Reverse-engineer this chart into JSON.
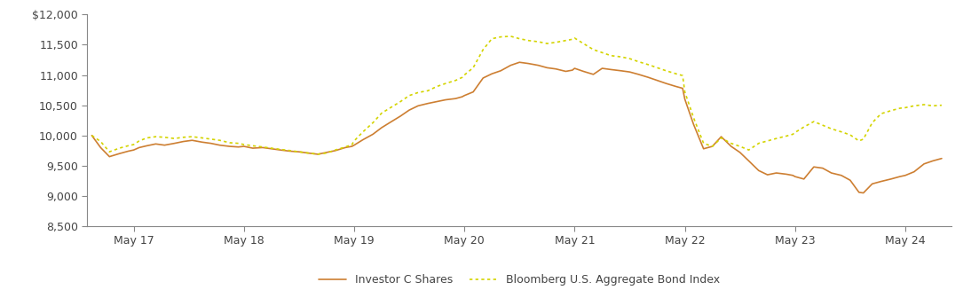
{
  "title": "",
  "xlabel": "",
  "ylabel": "",
  "ylim": [
    8500,
    12000
  ],
  "yticks": [
    8500,
    9000,
    9500,
    10000,
    10500,
    11000,
    11500,
    12000
  ],
  "xtick_labels": [
    "May 17",
    "May 18",
    "May 19",
    "May 20",
    "May 21",
    "May 22",
    "May 23",
    "May 24"
  ],
  "xtick_positions": [
    2017,
    2018,
    2019,
    2020,
    2021,
    2022,
    2023,
    2024
  ],
  "investor_color": "#CD7F32",
  "bloomberg_color": "#D4D400",
  "background_color": "#ffffff",
  "legend_labels": [
    "Investor C Shares",
    "Bloomberg U.S. Aggregate Bond Index"
  ],
  "investor_data": [
    [
      2016.62,
      10000
    ],
    [
      2016.7,
      9800
    ],
    [
      2016.78,
      9650
    ],
    [
      2016.87,
      9700
    ],
    [
      2016.95,
      9740
    ],
    [
      2017.0,
      9760
    ],
    [
      2017.05,
      9800
    ],
    [
      2017.12,
      9830
    ],
    [
      2017.2,
      9860
    ],
    [
      2017.28,
      9840
    ],
    [
      2017.37,
      9870
    ],
    [
      2017.45,
      9900
    ],
    [
      2017.53,
      9920
    ],
    [
      2017.62,
      9890
    ],
    [
      2017.7,
      9870
    ],
    [
      2017.78,
      9840
    ],
    [
      2017.87,
      9820
    ],
    [
      2017.95,
      9810
    ],
    [
      2018.0,
      9820
    ],
    [
      2018.08,
      9790
    ],
    [
      2018.17,
      9800
    ],
    [
      2018.25,
      9780
    ],
    [
      2018.33,
      9760
    ],
    [
      2018.42,
      9740
    ],
    [
      2018.5,
      9730
    ],
    [
      2018.58,
      9710
    ],
    [
      2018.67,
      9690
    ],
    [
      2018.75,
      9720
    ],
    [
      2018.83,
      9750
    ],
    [
      2018.92,
      9800
    ],
    [
      2018.98,
      9820
    ],
    [
      2019.0,
      9840
    ],
    [
      2019.08,
      9930
    ],
    [
      2019.17,
      10020
    ],
    [
      2019.25,
      10130
    ],
    [
      2019.33,
      10220
    ],
    [
      2019.42,
      10320
    ],
    [
      2019.5,
      10420
    ],
    [
      2019.58,
      10490
    ],
    [
      2019.67,
      10530
    ],
    [
      2019.75,
      10560
    ],
    [
      2019.83,
      10590
    ],
    [
      2019.92,
      10610
    ],
    [
      2019.98,
      10640
    ],
    [
      2020.0,
      10660
    ],
    [
      2020.08,
      10720
    ],
    [
      2020.17,
      10950
    ],
    [
      2020.25,
      11020
    ],
    [
      2020.33,
      11070
    ],
    [
      2020.42,
      11160
    ],
    [
      2020.5,
      11210
    ],
    [
      2020.58,
      11190
    ],
    [
      2020.67,
      11160
    ],
    [
      2020.75,
      11120
    ],
    [
      2020.83,
      11100
    ],
    [
      2020.92,
      11060
    ],
    [
      2020.98,
      11080
    ],
    [
      2021.0,
      11110
    ],
    [
      2021.08,
      11060
    ],
    [
      2021.17,
      11010
    ],
    [
      2021.25,
      11110
    ],
    [
      2021.33,
      11090
    ],
    [
      2021.42,
      11070
    ],
    [
      2021.5,
      11050
    ],
    [
      2021.58,
      11010
    ],
    [
      2021.67,
      10960
    ],
    [
      2021.75,
      10910
    ],
    [
      2021.83,
      10860
    ],
    [
      2021.92,
      10810
    ],
    [
      2021.98,
      10780
    ],
    [
      2022.0,
      10600
    ],
    [
      2022.08,
      10180
    ],
    [
      2022.17,
      9780
    ],
    [
      2022.25,
      9820
    ],
    [
      2022.33,
      9980
    ],
    [
      2022.42,
      9820
    ],
    [
      2022.5,
      9720
    ],
    [
      2022.58,
      9580
    ],
    [
      2022.67,
      9420
    ],
    [
      2022.75,
      9350
    ],
    [
      2022.83,
      9380
    ],
    [
      2022.92,
      9360
    ],
    [
      2022.98,
      9340
    ],
    [
      2023.0,
      9320
    ],
    [
      2023.08,
      9280
    ],
    [
      2023.17,
      9480
    ],
    [
      2023.25,
      9460
    ],
    [
      2023.33,
      9380
    ],
    [
      2023.42,
      9340
    ],
    [
      2023.5,
      9260
    ],
    [
      2023.58,
      9060
    ],
    [
      2023.62,
      9050
    ],
    [
      2023.7,
      9200
    ],
    [
      2023.78,
      9240
    ],
    [
      2023.87,
      9280
    ],
    [
      2023.95,
      9320
    ],
    [
      2024.0,
      9340
    ],
    [
      2024.08,
      9400
    ],
    [
      2024.17,
      9530
    ],
    [
      2024.25,
      9580
    ],
    [
      2024.33,
      9620
    ]
  ],
  "bloomberg_data": [
    [
      2016.62,
      10000
    ],
    [
      2016.7,
      9900
    ],
    [
      2016.78,
      9730
    ],
    [
      2016.87,
      9790
    ],
    [
      2016.95,
      9830
    ],
    [
      2017.0,
      9850
    ],
    [
      2017.05,
      9910
    ],
    [
      2017.12,
      9960
    ],
    [
      2017.2,
      9980
    ],
    [
      2017.28,
      9970
    ],
    [
      2017.37,
      9950
    ],
    [
      2017.45,
      9970
    ],
    [
      2017.53,
      9980
    ],
    [
      2017.62,
      9960
    ],
    [
      2017.7,
      9940
    ],
    [
      2017.78,
      9920
    ],
    [
      2017.87,
      9880
    ],
    [
      2017.95,
      9870
    ],
    [
      2018.0,
      9850
    ],
    [
      2018.08,
      9830
    ],
    [
      2018.17,
      9810
    ],
    [
      2018.25,
      9790
    ],
    [
      2018.33,
      9770
    ],
    [
      2018.42,
      9750
    ],
    [
      2018.5,
      9730
    ],
    [
      2018.58,
      9710
    ],
    [
      2018.67,
      9690
    ],
    [
      2018.75,
      9710
    ],
    [
      2018.83,
      9760
    ],
    [
      2018.92,
      9810
    ],
    [
      2018.98,
      9850
    ],
    [
      2019.0,
      9910
    ],
    [
      2019.08,
      10060
    ],
    [
      2019.17,
      10210
    ],
    [
      2019.25,
      10370
    ],
    [
      2019.33,
      10460
    ],
    [
      2019.42,
      10560
    ],
    [
      2019.5,
      10660
    ],
    [
      2019.58,
      10710
    ],
    [
      2019.67,
      10740
    ],
    [
      2019.75,
      10810
    ],
    [
      2019.83,
      10860
    ],
    [
      2019.92,
      10910
    ],
    [
      2019.98,
      10960
    ],
    [
      2020.0,
      11000
    ],
    [
      2020.08,
      11120
    ],
    [
      2020.17,
      11420
    ],
    [
      2020.25,
      11600
    ],
    [
      2020.33,
      11630
    ],
    [
      2020.42,
      11640
    ],
    [
      2020.5,
      11600
    ],
    [
      2020.58,
      11570
    ],
    [
      2020.67,
      11550
    ],
    [
      2020.75,
      11520
    ],
    [
      2020.83,
      11540
    ],
    [
      2020.92,
      11570
    ],
    [
      2020.98,
      11590
    ],
    [
      2021.0,
      11610
    ],
    [
      2021.08,
      11520
    ],
    [
      2021.17,
      11420
    ],
    [
      2021.25,
      11370
    ],
    [
      2021.33,
      11320
    ],
    [
      2021.42,
      11300
    ],
    [
      2021.5,
      11270
    ],
    [
      2021.58,
      11220
    ],
    [
      2021.67,
      11170
    ],
    [
      2021.75,
      11120
    ],
    [
      2021.83,
      11070
    ],
    [
      2021.92,
      11020
    ],
    [
      2021.98,
      10990
    ],
    [
      2022.0,
      10720
    ],
    [
      2022.08,
      10290
    ],
    [
      2022.17,
      9870
    ],
    [
      2022.25,
      9820
    ],
    [
      2022.33,
      9960
    ],
    [
      2022.42,
      9870
    ],
    [
      2022.5,
      9820
    ],
    [
      2022.58,
      9760
    ],
    [
      2022.67,
      9870
    ],
    [
      2022.75,
      9910
    ],
    [
      2022.83,
      9950
    ],
    [
      2022.92,
      9990
    ],
    [
      2022.98,
      10020
    ],
    [
      2023.0,
      10050
    ],
    [
      2023.08,
      10140
    ],
    [
      2023.17,
      10230
    ],
    [
      2023.25,
      10170
    ],
    [
      2023.33,
      10110
    ],
    [
      2023.42,
      10060
    ],
    [
      2023.5,
      10010
    ],
    [
      2023.58,
      9910
    ],
    [
      2023.62,
      9940
    ],
    [
      2023.7,
      10210
    ],
    [
      2023.78,
      10360
    ],
    [
      2023.87,
      10410
    ],
    [
      2023.95,
      10450
    ],
    [
      2024.0,
      10460
    ],
    [
      2024.08,
      10490
    ],
    [
      2024.17,
      10510
    ],
    [
      2024.25,
      10490
    ],
    [
      2024.33,
      10500
    ]
  ]
}
